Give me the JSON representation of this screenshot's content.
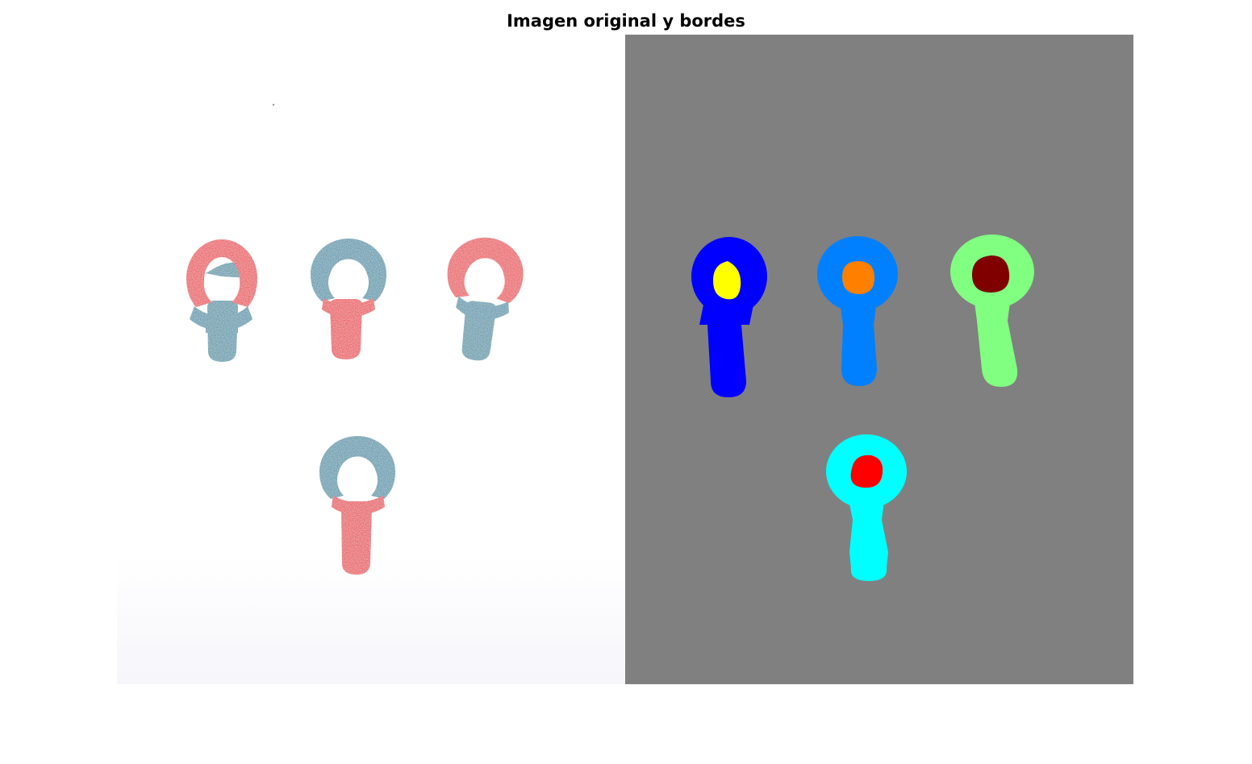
{
  "figure": {
    "title": "Imagen original y bordes"
  },
  "original_image": {
    "description_colors": {
      "red": "#e8323c",
      "blue": "#3a8ea6",
      "background": "#ffffff"
    },
    "candies": [
      {
        "ring_color": "red",
        "stem_color": "blue"
      },
      {
        "ring_color": "blue",
        "stem_color": "red"
      },
      {
        "ring_color": "red",
        "stem_color": "blue"
      },
      {
        "ring_color": "blue",
        "stem_color": "red"
      }
    ]
  },
  "label_image": {
    "background_color": "#808080",
    "regions": [
      {
        "body_color": "#0000ff",
        "hole_color": "#ffff00"
      },
      {
        "body_color": "#0080ff",
        "hole_color": "#ff8000"
      },
      {
        "body_color": "#80ff80",
        "hole_color": "#800000"
      },
      {
        "body_color": "#00ffff",
        "hole_color": "#ff0000"
      }
    ]
  }
}
